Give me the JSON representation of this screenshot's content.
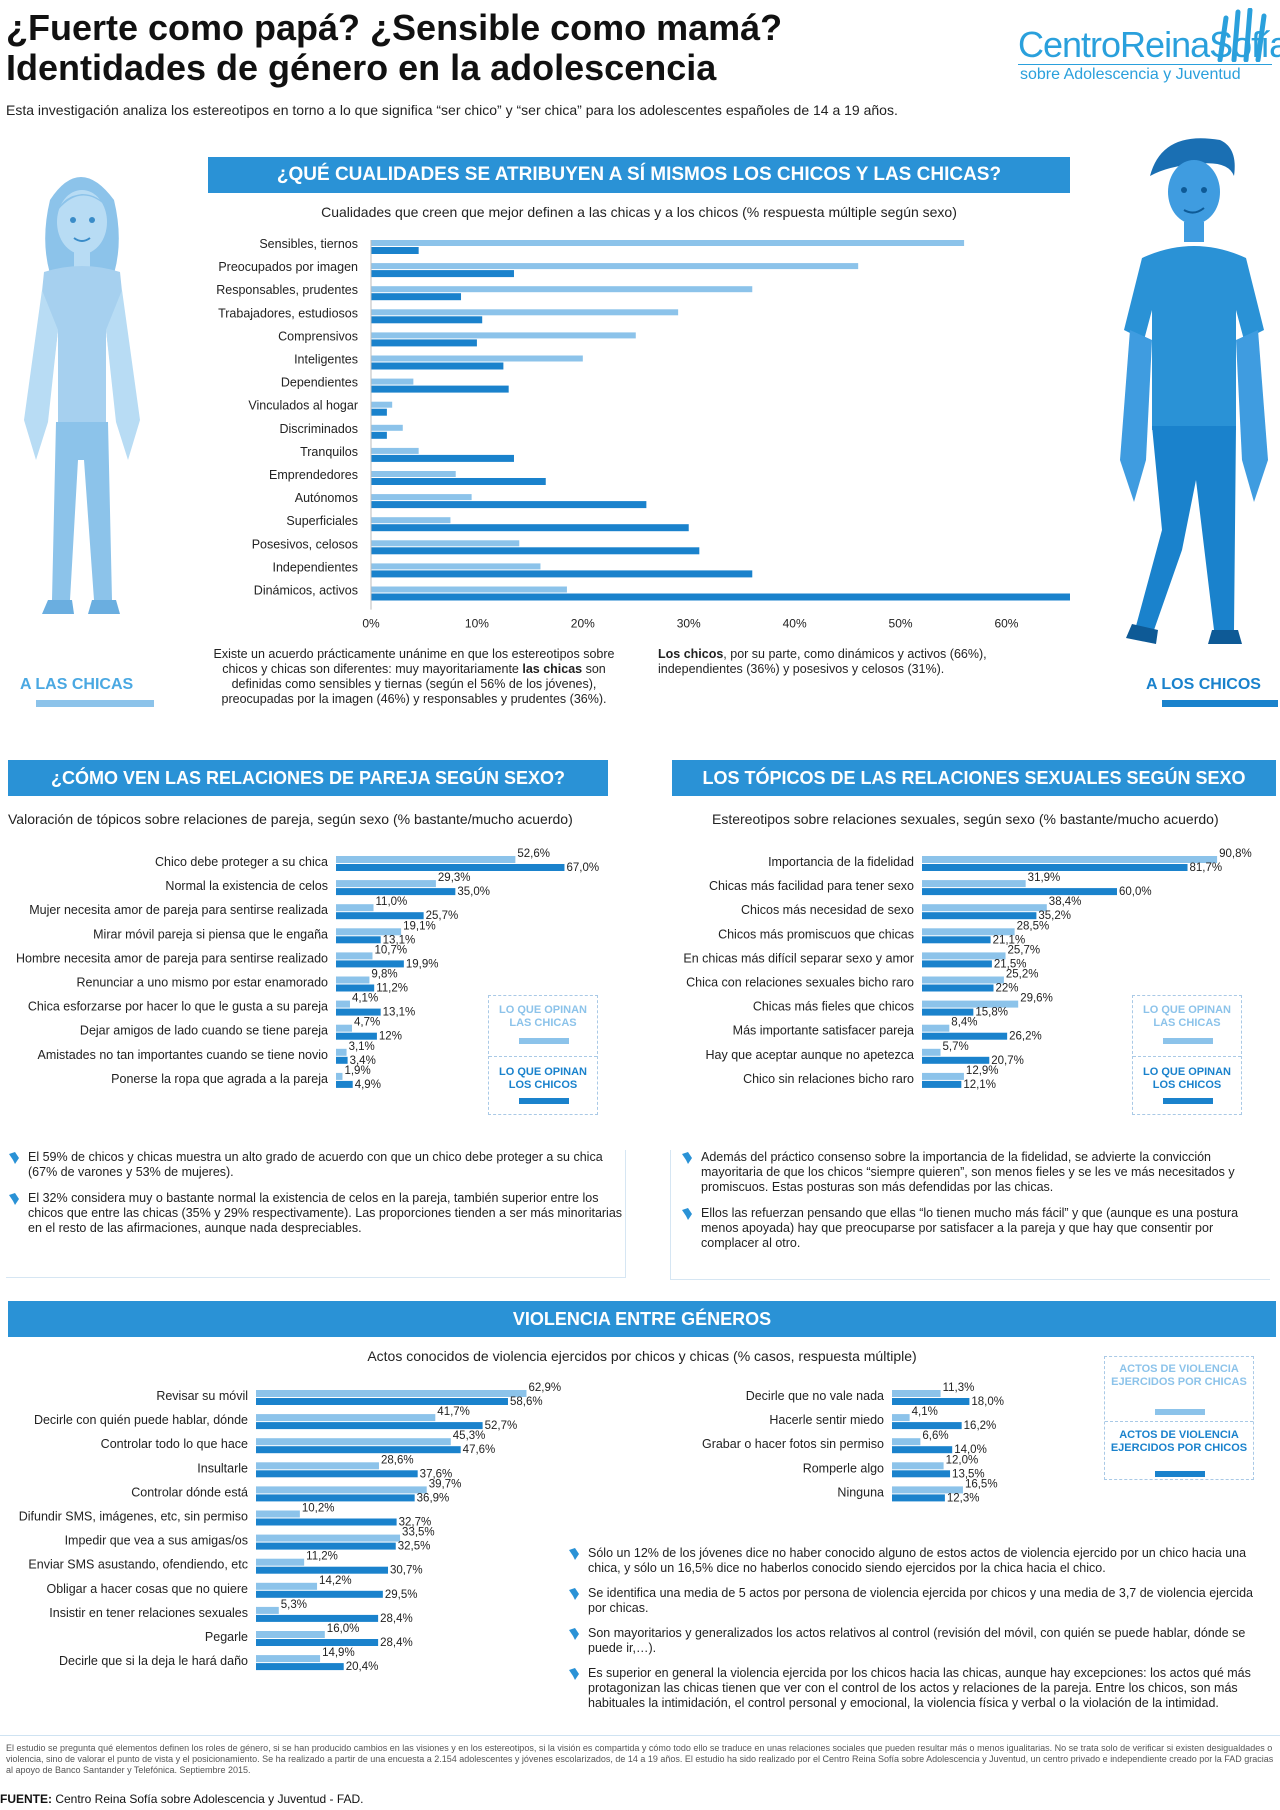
{
  "title": {
    "line1": "¿Fuerte como papá? ¿Sensible como mamá?",
    "line2": "Identidades de género en la adolescencia"
  },
  "logo": {
    "line1": "CentroReinaSofía",
    "line2": "sobre Adolescencia y Juventud"
  },
  "intro": "Esta investigación analiza los estereotipos en torno a lo que significa “ser chico” y “ser chica” para los adolescentes españoles de 14 a 19 años.",
  "colors": {
    "girls": "#8cc3ea",
    "boys": "#1a82cc",
    "banner": "#2a92d6"
  },
  "section1": {
    "banner": "¿QUÉ CUALIDADES SE ATRIBUYEN A SÍ MISMOS LOS CHICOS Y LAS CHICAS?",
    "subtitle": "Cualidades que creen que mejor definen a las chicas y a los chicos (% respuesta múltiple según sexo)",
    "girls_label": "A LAS CHICAS",
    "boys_label": "A LOS CHICOS",
    "text_left": "Existe un acuerdo prácticamente unánime en que los estereotipos sobre chicos y chicas son diferentes: muy mayoritariamente las chicas son definidas como sensibles y tiernas (según el 56% de los jóvenes), preocupadas por la imagen (46%) y responsables y prudentes (36%).",
    "text_right": "Los chicos, por su parte, como dinámicos y activos (66%), independientes (36%) y posesivos y celosos (31%)."
  },
  "section2": {
    "banner": "¿CÓMO VEN LAS RELACIONES DE PAREJA SEGÚN SEXO?",
    "subtitle": "Valoración de tópicos sobre relaciones de pareja, según sexo (% bastante/mucho acuerdo)",
    "legend_girls": "LO QUE OPINAN LAS CHICAS",
    "legend_boys": "LO QUE OPINAN LOS CHICOS",
    "bullets": [
      "El 59% de chicos y chicas muestra un alto grado de acuerdo con que un chico debe proteger a su chica (67% de varones y 53% de mujeres).",
      "El 32% considera muy o bastante normal la existencia de celos en la pareja, también superior entre los chicos que entre las chicas (35% y 29% respectivamente). Las proporciones tienden a ser más minoritarias en el resto de las afirmaciones, aunque nada despreciables."
    ]
  },
  "section3": {
    "banner": "LOS TÓPICOS DE LAS RELACIONES SEXUALES SEGÚN SEXO",
    "subtitle": "Estereotipos sobre relaciones sexuales, según sexo (% bastante/mucho acuerdo)",
    "legend_girls": "LO QUE OPINAN LAS CHICAS",
    "legend_boys": "LO QUE OPINAN LOS CHICOS",
    "bullets": [
      "Además del práctico consenso sobre la importancia de la fidelidad, se advierte la convicción mayoritaria de que los chicos “siempre quieren”, son menos fieles y se les ve más necesitados y promiscuos. Estas posturas son más defendidas por las chicas.",
      "Ellos las refuerzan pensando que ellas “lo tienen mucho más fácil” y que (aunque es una postura menos apoyada) hay que preocuparse por satisfacer a la pareja y que hay que consentir por complacer al otro."
    ]
  },
  "section4": {
    "banner": "VIOLENCIA ENTRE GÉNEROS",
    "subtitle": "Actos conocidos de violencia ejercidos por chicos y chicas (% casos, respuesta múltiple)",
    "legend_girls": "ACTOS DE VIOLENCIA EJERCIDOS POR CHICAS",
    "legend_boys": "ACTOS DE VIOLENCIA EJERCIDOS POR CHICOS",
    "bullets": [
      "Sólo un 12% de los jóvenes dice no haber conocido alguno de estos actos de violencia ejercido por un chico hacia una chica, y sólo un 16,5% dice no haberlos conocido siendo ejercidos por la chica hacia el chico.",
      "Se identifica una media de 5 actos por persona de violencia ejercida por chicos y una media de 3,7 de violencia ejercida por chicas.",
      "Son mayoritarios y generalizados los actos relativos al control (revisión del móvil, con quién se puede hablar, dónde se puede ir,…).",
      "Es superior en general la violencia ejercida por los chicos hacia las chicas, aunque hay excepciones: los actos qué más protagonizan las chicas tienen que ver con el control de los actos y relaciones de la pareja. Entre los chicos, son más habituales la intimidación, el control personal y emocional, la violencia física y verbal o la violación de la intimidad."
    ]
  },
  "footnote": "El estudio se pregunta qué elementos definen los roles de género, si se han producido cambios en las visiones y en los estereotipos, si la visión es compartida y cómo todo ello se traduce en unas relaciones sociales que pueden resultar más o menos igualitarias. No se trata solo de verificar si existen desigualdades o violencia, sino de valorar el punto de vista y el posicionamiento. Se ha realizado a partir de una encuesta a 2.154 adolescentes y jóvenes escolarizados, de 14 a 19 años. El estudio ha sido realizado por el Centro Reina Sofía sobre Adolescencia y Juventud, un centro privado e independiente creado por la FAD gracias al apoyo de Banco Santander y Telefónica. Septiembre 2015.",
  "source": {
    "label": "FUENTE:",
    "text": " Centro Reina Sofía sobre Adolescencia y Juventud - FAD."
  },
  "chart_data": [
    {
      "type": "bar",
      "orientation": "horizontal",
      "title": "Cualidades que creen que mejor definen a las chicas y a los chicos (% respuesta múltiple según sexo)",
      "xlim": [
        0,
        66
      ],
      "ticks": [
        "0%",
        "10%",
        "20%",
        "30%",
        "40%",
        "50%",
        "60%"
      ],
      "categories": [
        "Sensibles, tiernos",
        "Preocupados por imagen",
        "Responsables, prudentes",
        "Trabajadores, estudiosos",
        "Comprensivos",
        "Inteligentes",
        "Dependientes",
        "Vinculados al hogar",
        "Discriminados",
        "Tranquilos",
        "Emprendedores",
        "Autónomos",
        "Superficiales",
        "Posesivos, celosos",
        "Independientes",
        "Dinámicos, activos"
      ],
      "series": [
        {
          "name": "A LAS CHICAS",
          "values": [
            56,
            46,
            36,
            29,
            25,
            20,
            4,
            2,
            3,
            4.5,
            8,
            9.5,
            7.5,
            14,
            16,
            18.5
          ]
        },
        {
          "name": "A LOS CHICOS",
          "values": [
            4.5,
            13.5,
            8.5,
            10.5,
            10,
            12.5,
            13,
            1.5,
            1.5,
            13.5,
            16.5,
            26,
            30,
            31,
            36,
            66
          ]
        }
      ]
    },
    {
      "type": "bar",
      "orientation": "horizontal",
      "title": "Valoración de tópicos sobre relaciones de pareja, según sexo (% bastante/mucho acuerdo)",
      "categories": [
        "Chico debe proteger a su chica",
        "Normal la existencia de celos",
        "Mujer necesita amor de pareja para sentirse realizada",
        "Mirar móvil pareja si piensa que le engaña",
        "Hombre necesita amor de pareja para sentirse realizado",
        "Renunciar a uno mismo por estar enamorado",
        "Chica esforzarse por hacer lo que le gusta a su pareja",
        "Dejar amigos de lado cuando se tiene pareja",
        "Amistades no tan importantes cuando se tiene novio",
        "Ponerse la ropa que agrada a la pareja"
      ],
      "series": [
        {
          "name": "LO QUE OPINAN LAS CHICAS",
          "values": [
            52.6,
            29.3,
            11.0,
            19.1,
            10.7,
            9.8,
            4.1,
            4.7,
            3.1,
            1.9
          ],
          "labels": [
            "52,6%",
            "29,3%",
            "11,0%",
            "19,1%",
            "10,7%",
            "9,8%",
            "4,1%",
            "4,7%",
            "3,1%",
            "1,9%"
          ]
        },
        {
          "name": "LO QUE OPINAN LOS CHICOS",
          "values": [
            67.0,
            35.0,
            25.7,
            13.1,
            19.9,
            11.2,
            13.1,
            12,
            3.4,
            4.9
          ],
          "labels": [
            "67,0%",
            "35,0%",
            "25,7%",
            "13,1%",
            "19,9%",
            "11,2%",
            "13,1%",
            "12%",
            "3,4%",
            "4,9%"
          ]
        }
      ]
    },
    {
      "type": "bar",
      "orientation": "horizontal",
      "title": "Estereotipos sobre relaciones sexuales, según sexo (% bastante/mucho acuerdo)",
      "categories": [
        "Importancia de la fidelidad",
        "Chicas más facilidad para tener sexo",
        "Chicos más necesidad de sexo",
        "Chicos más promiscuos que chicas",
        "En chicas más difícil separar sexo y amor",
        "Chica con relaciones sexuales bicho raro",
        "Chicas más fieles que chicos",
        "Más importante satisfacer pareja",
        "Hay que aceptar aunque no apetezca",
        "Chico sin relaciones bicho raro"
      ],
      "series": [
        {
          "name": "LO QUE OPINAN LAS CHICAS",
          "values": [
            90.8,
            31.9,
            38.4,
            28.5,
            25.7,
            25.2,
            29.6,
            8.4,
            5.7,
            12.9
          ],
          "labels": [
            "90,8%",
            "31,9%",
            "38,4%",
            "28,5%",
            "25,7%",
            "25,2%",
            "29,6%",
            "8,4%",
            "5,7%",
            "12,9%"
          ]
        },
        {
          "name": "LO QUE OPINAN LOS CHICOS",
          "values": [
            81.7,
            60.0,
            35.2,
            21.1,
            21.5,
            22,
            15.8,
            26.2,
            20.7,
            12.1
          ],
          "labels": [
            "81,7%",
            "60,0%",
            "35,2%",
            "21,1%",
            "21,5%",
            "22%",
            "15,8%",
            "26,2%",
            "20,7%",
            "12,1%"
          ]
        }
      ]
    },
    {
      "type": "bar",
      "orientation": "horizontal",
      "title": "Actos conocidos de violencia ejercidos por chicos y chicas (% casos, respuesta múltiple)",
      "categories": [
        "Revisar su móvil",
        "Decirle con quién puede hablar, dónde",
        "Controlar todo lo que hace",
        "Insultarle",
        "Controlar dónde está",
        "Difundir SMS, imágenes, etc, sin permiso",
        "Impedir que vea a sus amigas/os",
        "Enviar SMS asustando, ofendiendo, etc",
        "Obligar a hacer cosas que no quiere",
        "Insistir en tener relaciones sexuales",
        "Pegarle",
        "Decirle que si la deja le hará daño"
      ],
      "series": [
        {
          "name": "ACTOS DE VIOLENCIA EJERCIDOS POR CHICAS",
          "values": [
            62.9,
            41.7,
            45.3,
            28.6,
            39.7,
            10.2,
            33.5,
            11.2,
            14.2,
            5.3,
            16.0,
            14.9
          ],
          "labels": [
            "62,9%",
            "41,7%",
            "45,3%",
            "28,6%",
            "39,7%",
            "10,2%",
            "33,5%",
            "11,2%",
            "14,2%",
            "5,3%",
            "16,0%",
            "14,9%"
          ]
        },
        {
          "name": "ACTOS DE VIOLENCIA EJERCIDOS POR CHICOS",
          "values": [
            58.6,
            52.7,
            47.6,
            37.6,
            36.9,
            32.7,
            32.5,
            30.7,
            29.5,
            28.4,
            28.4,
            20.4
          ],
          "labels": [
            "58,6%",
            "52,7%",
            "47,6%",
            "37,6%",
            "36,9%",
            "32,7%",
            "32,5%",
            "30,7%",
            "29,5%",
            "28,4%",
            "28,4%",
            "20,4%"
          ]
        }
      ]
    },
    {
      "type": "bar",
      "orientation": "horizontal",
      "categories": [
        "Decirle que no vale nada",
        "Hacerle sentir miedo",
        "Grabar o hacer fotos sin permiso",
        "Romperle algo",
        "Ninguna"
      ],
      "series": [
        {
          "name": "ACTOS DE VIOLENCIA EJERCIDOS POR CHICAS",
          "values": [
            11.3,
            4.1,
            6.6,
            12.0,
            16.5
          ],
          "labels": [
            "11,3%",
            "4,1%",
            "6,6%",
            "12,0%",
            "16,5%"
          ]
        },
        {
          "name": "ACTOS DE VIOLENCIA EJERCIDOS POR CHICOS",
          "values": [
            18.0,
            16.2,
            14.0,
            13.5,
            12.3
          ],
          "labels": [
            "18,0%",
            "16,2%",
            "14,0%",
            "13,5%",
            "12,3%"
          ]
        }
      ]
    }
  ]
}
